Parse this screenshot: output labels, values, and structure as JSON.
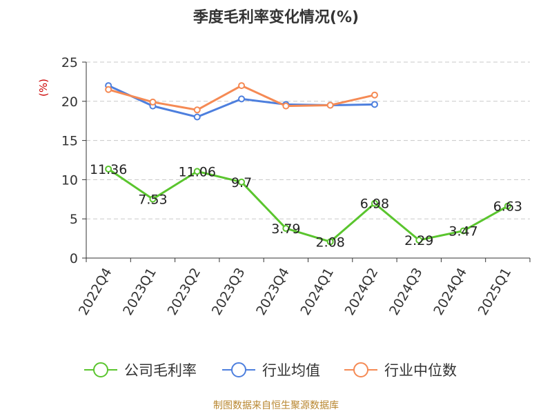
{
  "chart_data": {
    "type": "line",
    "title": "季度毛利率变化情况(%)",
    "unit": "(%)",
    "categories": [
      "2022Q4",
      "2023Q1",
      "2023Q2",
      "2023Q3",
      "2023Q4",
      "2024Q1",
      "2024Q2",
      "2024Q3",
      "2024Q4",
      "2025Q1"
    ],
    "ylim": [
      0,
      25
    ],
    "yticks": [
      0,
      5,
      10,
      15,
      20,
      25
    ],
    "grid": true,
    "legend_position": "bottom",
    "series": [
      {
        "name": "公司毛利率",
        "color": "#5ac52e",
        "values": [
          11.36,
          7.53,
          11.06,
          9.7,
          3.79,
          2.08,
          6.98,
          2.29,
          3.47,
          6.63
        ],
        "labels": [
          "11.36",
          "7.53",
          "11.06",
          "9.7",
          "3.79",
          "2.08",
          "6.98",
          "2.29",
          "3.47",
          "6.63"
        ]
      },
      {
        "name": "行业均值",
        "color": "#4d7fde",
        "values": [
          22.0,
          19.4,
          18.0,
          20.3,
          19.6,
          19.5,
          19.6,
          null,
          null,
          null
        ]
      },
      {
        "name": "行业中位数",
        "color": "#f58a54",
        "values": [
          21.5,
          19.9,
          18.9,
          22.0,
          19.4,
          19.5,
          20.8,
          null,
          null,
          null
        ]
      }
    ],
    "source": "制图数据来自恒生聚源数据库"
  }
}
